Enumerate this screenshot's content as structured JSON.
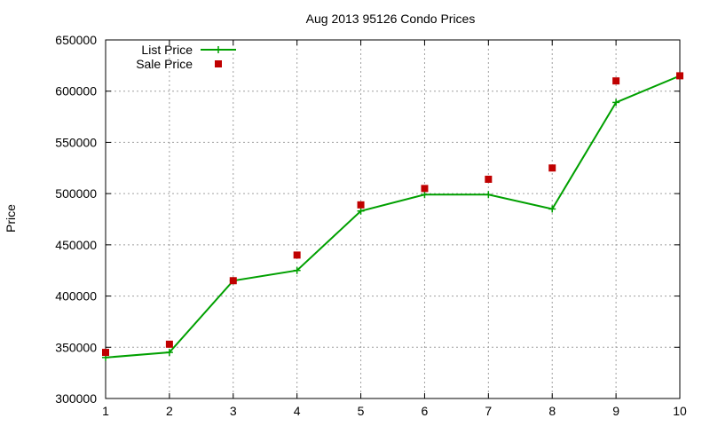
{
  "chart_data": {
    "type": "line",
    "title": "Aug 2013 95126 Condo Prices",
    "xlabel": "",
    "ylabel": "Price",
    "x": [
      1,
      2,
      3,
      4,
      5,
      6,
      7,
      8,
      9,
      10
    ],
    "xlim": [
      1,
      10
    ],
    "ylim": [
      300000,
      650000
    ],
    "xticks": [
      "1",
      "2",
      "3",
      "4",
      "5",
      "6",
      "7",
      "8",
      "9",
      "10"
    ],
    "yticks": [
      "300000",
      "350000",
      "400000",
      "450000",
      "500000",
      "550000",
      "600000",
      "650000"
    ],
    "grid": true,
    "legend_position": "top-left",
    "series": [
      {
        "name": "List Price",
        "style": "line-with-plus-markers",
        "color": "#00a000",
        "values": [
          340000,
          345000,
          415000,
          425000,
          483000,
          499000,
          499000,
          485000,
          589000,
          615000
        ]
      },
      {
        "name": "Sale Price",
        "style": "square-markers",
        "color": "#c00000",
        "values": [
          345000,
          353000,
          415000,
          440000,
          489000,
          505000,
          514000,
          525000,
          610000,
          615000
        ]
      }
    ]
  }
}
